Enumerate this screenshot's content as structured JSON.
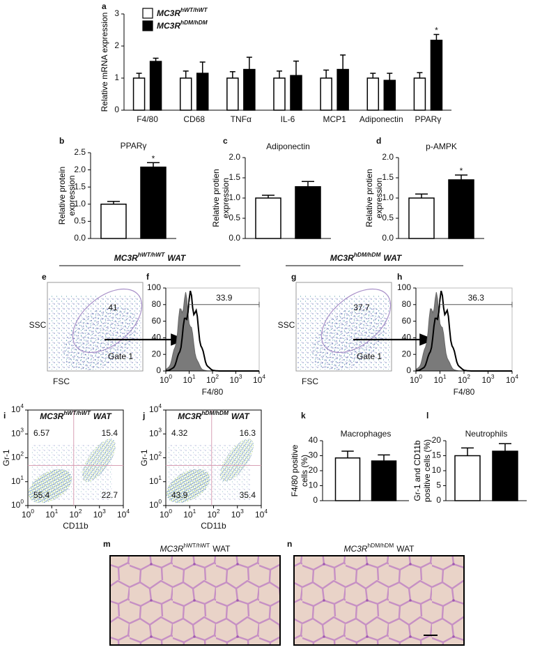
{
  "chart_data": [
    {
      "type": "bar",
      "panel": "a",
      "ylabel": "Relative mRNA expression",
      "categories": [
        "F4/80",
        "CD68",
        "TNFα",
        "IL-6",
        "MCP1",
        "Adiponectin",
        "PPARγ"
      ],
      "series": [
        {
          "name": "MC3R",
          "name_sup": "hWT/hWT",
          "color": "#ffffff",
          "values": [
            1,
            1,
            1,
            1,
            1,
            1,
            1
          ],
          "errors": [
            0.15,
            0.22,
            0.2,
            0.22,
            0.25,
            0.15,
            0.17
          ]
        },
        {
          "name": "MC3R",
          "name_sup": "hDM/hDM",
          "color": "#000000",
          "values": [
            1.52,
            1.15,
            1.27,
            1.08,
            1.27,
            0.93,
            2.18
          ],
          "errors": [
            0.1,
            0.35,
            0.38,
            0.45,
            0.45,
            0.22,
            0.18
          ]
        }
      ],
      "ylim": [
        0,
        3
      ],
      "yticks": [
        0,
        1,
        2,
        3
      ],
      "annotations": [
        {
          "text": "*",
          "series": 1,
          "index": 6
        }
      ]
    },
    {
      "type": "bar",
      "panel": "b",
      "title": "PPARγ",
      "ylabel": "Relative protein expression",
      "series": [
        {
          "color": "#ffffff",
          "values": [
            1.0
          ],
          "errors": [
            0.08
          ]
        },
        {
          "color": "#000000",
          "values": [
            2.08
          ],
          "errors": [
            0.13
          ]
        }
      ],
      "ylim": [
        0,
        2.5
      ],
      "yticks": [
        {
          "value": 0,
          "label": "0.0"
        },
        0.5,
        {
          "value": 1,
          "label": "1.0"
        },
        1.5,
        {
          "value": 2,
          "label": "2.0"
        },
        2.5
      ],
      "annotations": [
        {
          "text": "*",
          "series": 1,
          "index": 0
        }
      ]
    },
    {
      "type": "bar",
      "panel": "c",
      "title": "Adiponectin",
      "ylabel": "Relative protien expression",
      "series": [
        {
          "color": "#ffffff",
          "values": [
            1.0
          ],
          "errors": [
            0.07
          ]
        },
        {
          "color": "#000000",
          "values": [
            1.28
          ],
          "errors": [
            0.13
          ]
        }
      ],
      "ylim": [
        0,
        2
      ],
      "yticks": [
        {
          "value": 0,
          "label": "0.0"
        },
        0.5,
        {
          "value": 1,
          "label": "1.0"
        },
        1.5,
        {
          "value": 2,
          "label": "2.0"
        }
      ]
    },
    {
      "type": "bar",
      "panel": "d",
      "title": "p-AMPK",
      "ylabel": "Relative protien expression",
      "series": [
        {
          "color": "#ffffff",
          "values": [
            1.0
          ],
          "errors": [
            0.1
          ]
        },
        {
          "color": "#000000",
          "values": [
            1.45
          ],
          "errors": [
            0.12
          ]
        }
      ],
      "ylim": [
        0,
        2
      ],
      "yticks": [
        {
          "value": 0,
          "label": "0.0"
        },
        0.5,
        {
          "value": 1,
          "label": "1.0"
        },
        1.5,
        {
          "value": 2,
          "label": "2.0"
        }
      ],
      "annotations": [
        {
          "text": "*",
          "series": 1,
          "index": 0
        }
      ]
    },
    {
      "type": "flow-scatter",
      "panel": "e",
      "xlabel": "FSC",
      "ylabel": "SSC",
      "gate_value": 41,
      "gate_name": "Gate 1"
    },
    {
      "type": "flow-histogram",
      "panel": "f",
      "xlabel": "F4/80",
      "xlim": [
        1,
        10000
      ],
      "log_x": true,
      "xticks": [
        {
          "value": 1,
          "label": "10",
          "exp": "0"
        },
        {
          "value": 10,
          "label": "10",
          "exp": "1"
        },
        {
          "value": 100,
          "label": "10",
          "exp": "2"
        },
        {
          "value": 1000,
          "label": "10",
          "exp": "3"
        },
        {
          "value": 10000,
          "label": "10",
          "exp": "4"
        }
      ],
      "ylim": [
        0,
        100
      ],
      "yticks": [
        0,
        20,
        40,
        60,
        80,
        100
      ],
      "gate_value": 33.9
    },
    {
      "type": "flow-scatter",
      "panel": "g",
      "xlabel": "FSC",
      "ylabel": "SSC",
      "gate_value": 37.7,
      "gate_name": "Gate 1"
    },
    {
      "type": "flow-histogram",
      "panel": "h",
      "xlabel": "F4/80",
      "xlim": [
        1,
        10000
      ],
      "log_x": true,
      "xticks": [
        {
          "value": 1,
          "label": "10",
          "exp": "0"
        },
        {
          "value": 10,
          "label": "10",
          "exp": "1"
        },
        {
          "value": 100,
          "label": "10",
          "exp": "2"
        },
        {
          "value": 1000,
          "label": "10",
          "exp": "3"
        },
        {
          "value": 10000,
          "label": "10",
          "exp": "4"
        }
      ],
      "ylim": [
        0,
        100
      ],
      "yticks": [
        0,
        20,
        40,
        60,
        80,
        100
      ],
      "gate_value": 36.3
    },
    {
      "type": "flow-quadrant",
      "panel": "i",
      "title": {
        "name": "MC3R",
        "sup": "hWT/hWT",
        "suffix": "WAT"
      },
      "xlabel": "CD11b",
      "ylabel": "Gr-1",
      "xlim": [
        1,
        10000
      ],
      "ylim": [
        1,
        10000
      ],
      "log_x": true,
      "log_y": true,
      "xticks": [
        {
          "value": 1,
          "label": "10",
          "exp": "0"
        },
        {
          "value": 10,
          "label": "10",
          "exp": "1"
        },
        {
          "value": 100,
          "label": "10",
          "exp": "2"
        },
        {
          "value": 1000,
          "label": "10",
          "exp": "3"
        },
        {
          "value": 10000,
          "label": "10",
          "exp": "4"
        }
      ],
      "yticks": [
        {
          "value": 1,
          "label": "10",
          "exp": "0"
        },
        {
          "value": 10,
          "label": "10",
          "exp": "1"
        },
        {
          "value": 100,
          "label": "10",
          "exp": "2"
        },
        {
          "value": 1000,
          "label": "10",
          "exp": "3"
        },
        {
          "value": 10000,
          "label": "10",
          "exp": "4"
        }
      ],
      "quadrants": [
        6.57,
        15.4,
        55.4,
        22.7
      ]
    },
    {
      "type": "flow-quadrant",
      "panel": "j",
      "title": {
        "name": "MC3R",
        "sup": "hDM/hDM",
        "suffix": "WAT"
      },
      "xlabel": "CD11b",
      "ylabel": "Gr-1",
      "xlim": [
        1,
        10000
      ],
      "ylim": [
        1,
        10000
      ],
      "log_x": true,
      "log_y": true,
      "xticks": [
        {
          "value": 1,
          "label": "10",
          "exp": "0"
        },
        {
          "value": 10,
          "label": "10",
          "exp": "1"
        },
        {
          "value": 100,
          "label": "10",
          "exp": "2"
        },
        {
          "value": 1000,
          "label": "10",
          "exp": "3"
        },
        {
          "value": 10000,
          "label": "10",
          "exp": "4"
        }
      ],
      "yticks": [
        {
          "value": 1,
          "label": "10",
          "exp": "0"
        },
        {
          "value": 10,
          "label": "10",
          "exp": "1"
        },
        {
          "value": 100,
          "label": "10",
          "exp": "2"
        },
        {
          "value": 1000,
          "label": "10",
          "exp": "3"
        },
        {
          "value": 10000,
          "label": "10",
          "exp": "4"
        }
      ],
      "quadrants": [
        4.32,
        16.3,
        43.9,
        35.4
      ]
    },
    {
      "type": "bar",
      "panel": "k",
      "title": "Macrophages",
      "ylabel": "F4/80 positive cells (%)",
      "series": [
        {
          "color": "#ffffff",
          "values": [
            28.5
          ],
          "errors": [
            4.5
          ]
        },
        {
          "color": "#000000",
          "values": [
            26.5
          ],
          "errors": [
            4
          ]
        }
      ],
      "ylim": [
        0,
        40
      ],
      "yticks": [
        0,
        10,
        20,
        30,
        40
      ]
    },
    {
      "type": "bar",
      "panel": "l",
      "title": "Neutrophils",
      "ylabel": "Gr-1 and CD11b positive cells (%)",
      "series": [
        {
          "color": "#ffffff",
          "values": [
            15
          ],
          "errors": [
            2.6
          ]
        },
        {
          "color": "#000000",
          "values": [
            16.5
          ],
          "errors": [
            2.5
          ]
        }
      ],
      "ylim": [
        0,
        20
      ],
      "yticks": [
        0,
        5,
        10,
        15,
        20
      ]
    }
  ],
  "headings": [
    {
      "name": "MC3R",
      "sup": "hWT/hWT",
      "suffix": "WAT"
    },
    {
      "name": "MC3R",
      "sup": "hDM/hDM",
      "suffix": "WAT"
    }
  ],
  "histology": [
    {
      "panel": "m",
      "title": {
        "name": "MC3R",
        "sup": "hWT/hWT",
        "suffix": "WAT"
      }
    },
    {
      "panel": "n",
      "title": {
        "name": "MC3R",
        "sup": "hDM/hDM",
        "suffix": "WAT"
      }
    }
  ]
}
